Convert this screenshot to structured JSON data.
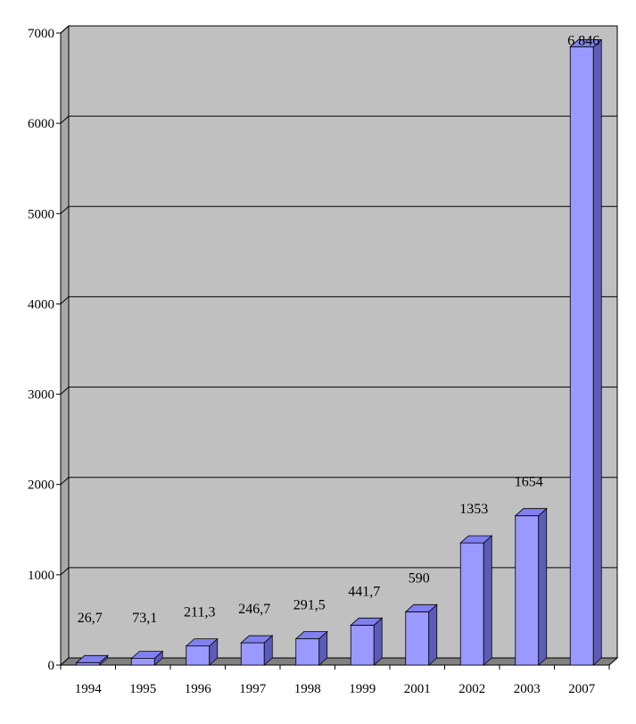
{
  "chart_data": {
    "type": "bar",
    "title": "",
    "xlabel": "",
    "ylabel": "",
    "categories": [
      "1994",
      "1995",
      "1996",
      "1997",
      "1998",
      "1999",
      "2001",
      "2002",
      "2003",
      "2007"
    ],
    "values": [
      26.7,
      73.1,
      211.3,
      246.7,
      291.5,
      441.7,
      590,
      1353,
      1654,
      6846
    ],
    "data_labels": [
      "26,7",
      "73,1",
      "211,3",
      "246,7",
      "291,5",
      "441,7",
      "590",
      "1353",
      "1654",
      "6 846"
    ],
    "ylim": [
      0,
      7000
    ],
    "yticks": [
      0,
      1000,
      2000,
      3000,
      4000,
      5000,
      6000,
      7000
    ],
    "ytick_labels": [
      "0",
      "1000",
      "2000",
      "3000",
      "4000",
      "5000",
      "6000",
      "7000"
    ],
    "grid": true,
    "legend": "none",
    "colors": {
      "plot_background": "#c0c0c0",
      "bar_front": "#9999ff",
      "bar_top": "#8080ee",
      "bar_side": "#5c5cb8",
      "floor": "#808080",
      "gridline": "#000000"
    }
  }
}
